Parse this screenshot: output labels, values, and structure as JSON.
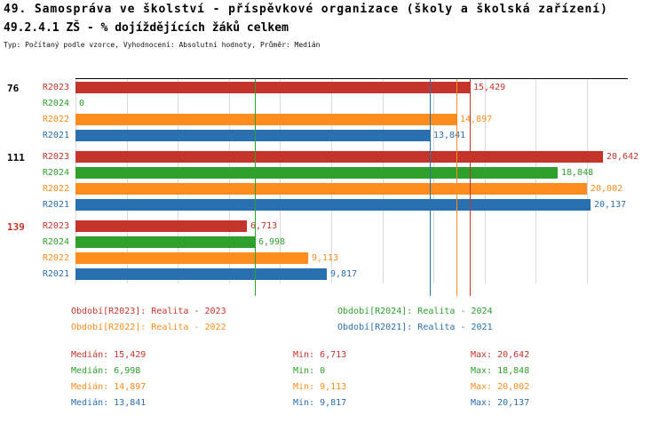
{
  "header": {
    "title_line1": "49. Samospráva ve školství - příspěvkové organizace (školy a školská zařízení)",
    "title_line2": "49.2.4.1 ZŠ - % dojíždějících žáků celkem",
    "meta_line": "Typ: Počítaný podle vzorce, Vyhodnocení: Absolutní hodnoty, Průměr: Medián"
  },
  "colors": {
    "R2023": "#c5342b",
    "R2024": "#2fa02c",
    "R2022": "#ff8c1f",
    "R2021": "#2a6fb0",
    "grid": "#d9d9d9",
    "axis": "#000000"
  },
  "chart_data": {
    "type": "bar",
    "orientation": "horizontal",
    "xlim": [
      0,
      21.6
    ],
    "grid_step": 2,
    "series_order": [
      "R2023",
      "R2024",
      "R2022",
      "R2021"
    ],
    "groups": [
      {
        "label": "76",
        "label_color": "#000000",
        "bars": [
          {
            "series": "R2023",
            "value": 15.429,
            "display": "15,429"
          },
          {
            "series": "R2024",
            "value": 0,
            "display": "0"
          },
          {
            "series": "R2022",
            "value": 14.897,
            "display": "14,897"
          },
          {
            "series": "R2021",
            "value": 13.841,
            "display": "13,841"
          }
        ]
      },
      {
        "label": "111",
        "label_color": "#000000",
        "bars": [
          {
            "series": "R2023",
            "value": 20.642,
            "display": "20,642"
          },
          {
            "series": "R2024",
            "value": 18.848,
            "display": "18,848"
          },
          {
            "series": "R2022",
            "value": 20.002,
            "display": "20,002"
          },
          {
            "series": "R2021",
            "value": 20.137,
            "display": "20,137"
          }
        ]
      },
      {
        "label": "139",
        "label_color": "#c5342b",
        "bars": [
          {
            "series": "R2023",
            "value": 6.713,
            "display": "6,713"
          },
          {
            "series": "R2024",
            "value": 6.998,
            "display": "6,998"
          },
          {
            "series": "R2022",
            "value": 9.113,
            "display": "9,113"
          },
          {
            "series": "R2021",
            "value": 9.817,
            "display": "9,817"
          }
        ]
      }
    ],
    "median_lines": [
      {
        "series": "R2024",
        "value": 6.998
      },
      {
        "series": "R2021",
        "value": 13.841
      },
      {
        "series": "R2022",
        "value": 14.897
      },
      {
        "series": "R2023",
        "value": 15.429
      }
    ]
  },
  "legend": [
    {
      "series": "R2023",
      "label": "Období[R2023]: Realita - 2023"
    },
    {
      "series": "R2024",
      "label": "Období[R2024]: Realita - 2024"
    },
    {
      "series": "R2022",
      "label": "Období[R2022]: Realita - 2022"
    },
    {
      "series": "R2021",
      "label": "Období[R2021]: Realita - 2021"
    }
  ],
  "stats": [
    {
      "series": "R2023",
      "median": "Medián: 15,429",
      "min": "Min: 6,713",
      "max": "Max: 20,642"
    },
    {
      "series": "R2024",
      "median": "Medián: 6,998",
      "min": "Min: 0",
      "max": "Max: 18,848"
    },
    {
      "series": "R2022",
      "median": "Medián: 14,897",
      "min": "Min: 9,113",
      "max": "Max: 20,002"
    },
    {
      "series": "R2021",
      "median": "Medián: 13,841",
      "min": "Min: 9,817",
      "max": "Max: 20,137"
    }
  ]
}
